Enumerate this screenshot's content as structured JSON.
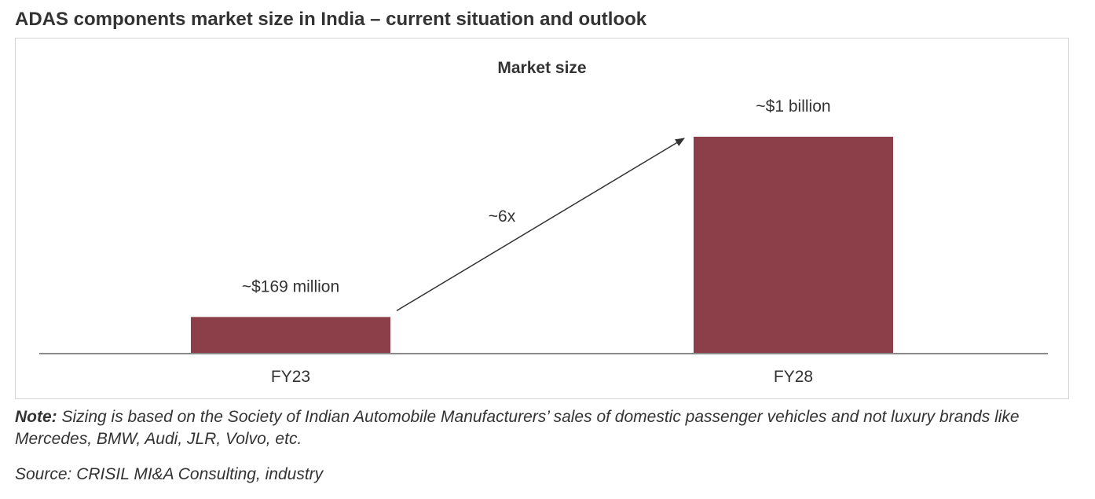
{
  "page": {
    "title": "ADAS components market size in India – current situation and outlook",
    "note_label": "Note:",
    "note_text": " Sizing is based on the Society of Indian Automobile Manufacturers’ sales of domestic passenger vehicles and not luxury brands like Mercedes, BMW, Audi, JLR, Volvo, etc.",
    "source": "Source: CRISIL MI&A Consulting, industry"
  },
  "chart_data": {
    "type": "bar",
    "title": "Market size",
    "xlabel": "",
    "ylabel": "",
    "unit": "USD million",
    "categories": [
      "FY23",
      "FY28"
    ],
    "values": [
      169,
      1000
    ],
    "data_labels": [
      "~$169 million",
      "~$1 billion"
    ],
    "ylim": [
      0,
      1000
    ],
    "grid": false,
    "legend": "none",
    "bar_color": "#8c3f49",
    "annotation": {
      "type": "arrow",
      "from": "FY23",
      "to": "FY28",
      "label": "~6x"
    }
  }
}
